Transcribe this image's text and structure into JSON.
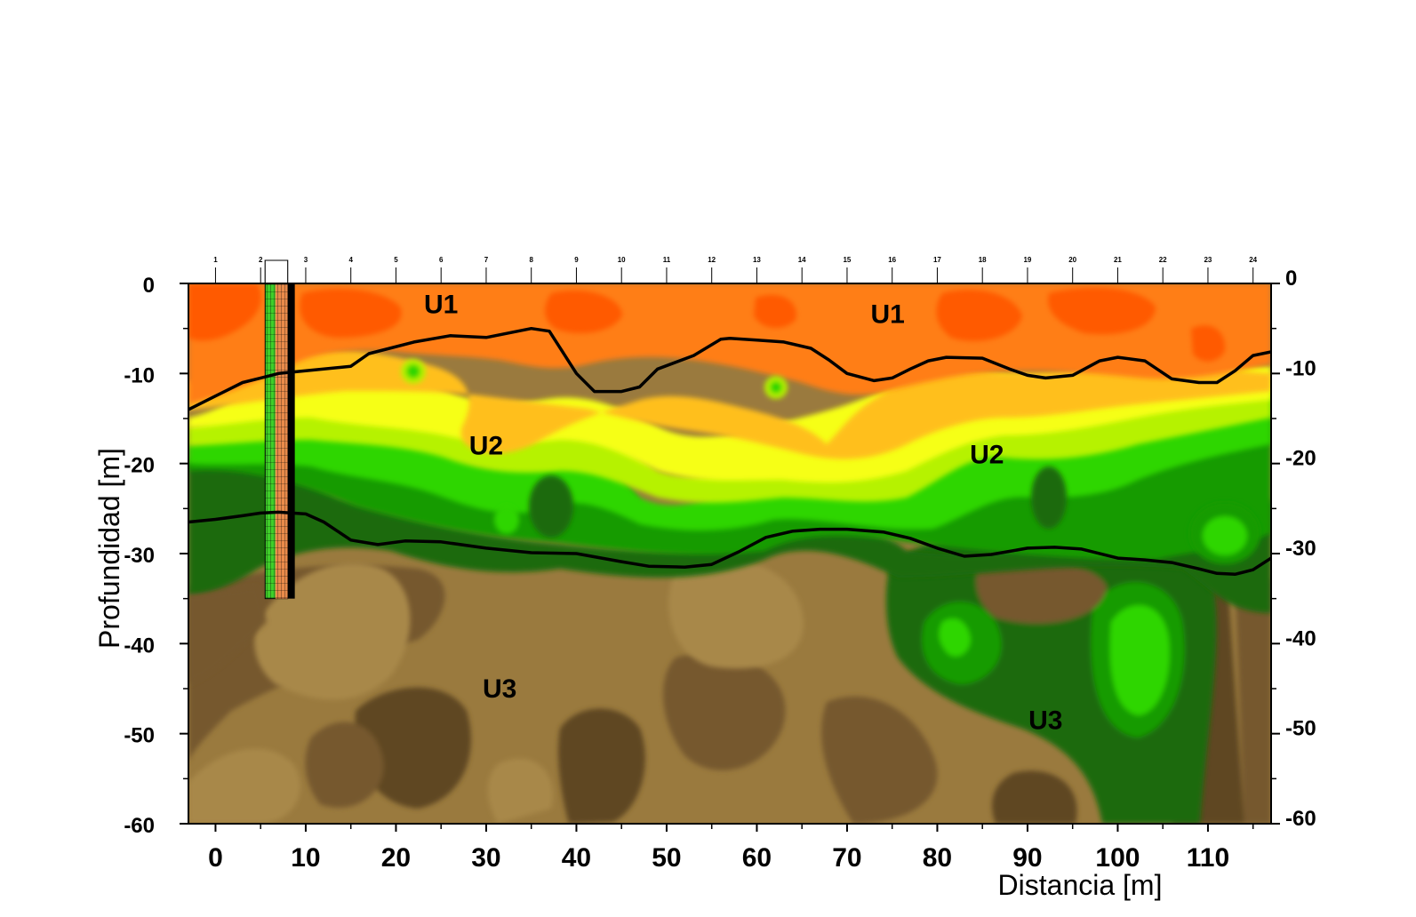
{
  "chart_data": {
    "type": "heatmap",
    "title": "",
    "xlabel": "Distancia [m]",
    "ylabel": "Profundidad [m]",
    "xlim": [
      -3,
      117
    ],
    "ylim": [
      -60,
      0
    ],
    "x_ticks": [
      0,
      10,
      20,
      30,
      40,
      50,
      60,
      70,
      80,
      90,
      100,
      110
    ],
    "y_ticks_left": [
      0,
      -10,
      -20,
      -30,
      -40,
      -50,
      -60
    ],
    "y_ticks_right": [
      0,
      -10,
      -20,
      -30,
      -40,
      -50,
      -60
    ],
    "grid": false,
    "colors": {
      "band0": "#ff5a00",
      "band1": "#ff7e14",
      "band2": "#ffbf1e",
      "band3": "#f6ff12",
      "band4": "#b6f200",
      "band5": "#2fd600",
      "band6": "#139b05",
      "band7": "#1e6a0e",
      "band8": "#5e4623",
      "band9": "#76592d",
      "band10": "#9a7a3e",
      "line": "#000000"
    },
    "electrodes": {
      "labels": [
        "1",
        "2",
        "3",
        "4",
        "5",
        "6",
        "7",
        "8",
        "9",
        "10",
        "11",
        "12",
        "13",
        "14",
        "15",
        "16",
        "17",
        "18",
        "19",
        "20",
        "21",
        "22",
        "23",
        "24"
      ],
      "x": [
        0,
        5,
        10,
        15,
        20,
        25,
        30,
        35,
        40,
        45,
        50,
        55,
        60,
        65,
        70,
        75,
        80,
        85,
        90,
        95,
        100,
        105,
        110,
        115
      ]
    },
    "borehole": {
      "x_from": 5.5,
      "x_to": 8,
      "depth_to": -35
    },
    "units": [
      {
        "label": "U1",
        "x": 25,
        "y": -3.3
      },
      {
        "label": "U1",
        "x": 74.5,
        "y": -4.4
      },
      {
        "label": "U2",
        "x": 30,
        "y": -19
      },
      {
        "label": "U2",
        "x": 85.5,
        "y": -20
      },
      {
        "label": "U3",
        "x": 31.5,
        "y": -46
      },
      {
        "label": "U3",
        "x": 92,
        "y": -49.5
      }
    ],
    "series": [
      {
        "name": "",
        "x": [
          -3,
          0,
          3,
          5,
          7,
          10,
          15,
          17,
          22,
          26,
          30,
          35,
          37,
          40,
          42,
          45,
          47,
          49,
          53,
          56,
          57,
          60,
          63,
          66,
          68,
          70,
          73,
          75,
          77,
          79,
          81,
          85,
          88,
          90,
          92,
          95,
          98,
          100,
          103,
          106,
          109,
          111,
          113,
          115,
          117
        ],
        "y": [
          -14,
          -12.5,
          -11,
          -10.5,
          -10,
          -9.7,
          -9.2,
          -7.8,
          -6.5,
          -5.8,
          -6,
          -5,
          -5.3,
          -10,
          -12,
          -12,
          -11.5,
          -9.5,
          -8,
          -6.2,
          -6.1,
          -6.3,
          -6.5,
          -7.2,
          -8.5,
          -10,
          -10.8,
          -10.5,
          -9.5,
          -8.6,
          -8.2,
          -8.3,
          -9.5,
          -10.2,
          -10.5,
          -10.2,
          -8.6,
          -8.2,
          -8.6,
          -10.6,
          -11,
          -11,
          -9.7,
          -8,
          -7.6
        ]
      },
      {
        "name": "",
        "x": [
          -3,
          0,
          3,
          5,
          7,
          10,
          12,
          15,
          18,
          21,
          25,
          30,
          35,
          40,
          45,
          48,
          52,
          55,
          58,
          61,
          64,
          67,
          70,
          74,
          77,
          80,
          83,
          86,
          90,
          93,
          96,
          100,
          103,
          106,
          109,
          111,
          113,
          115,
          117
        ],
        "y": [
          -26.5,
          -26.2,
          -25.8,
          -25.5,
          -25.4,
          -25.6,
          -26.5,
          -28.5,
          -29,
          -28.6,
          -28.7,
          -29.4,
          -29.9,
          -30,
          -30.9,
          -31.4,
          -31.5,
          -31.2,
          -29.8,
          -28.2,
          -27.5,
          -27.3,
          -27.3,
          -27.6,
          -28.3,
          -29.4,
          -30.3,
          -30.1,
          -29.4,
          -29.3,
          -29.5,
          -30.5,
          -30.7,
          -31,
          -31.7,
          -32.2,
          -32.3,
          -31.8,
          -30.5
        ]
      }
    ]
  }
}
